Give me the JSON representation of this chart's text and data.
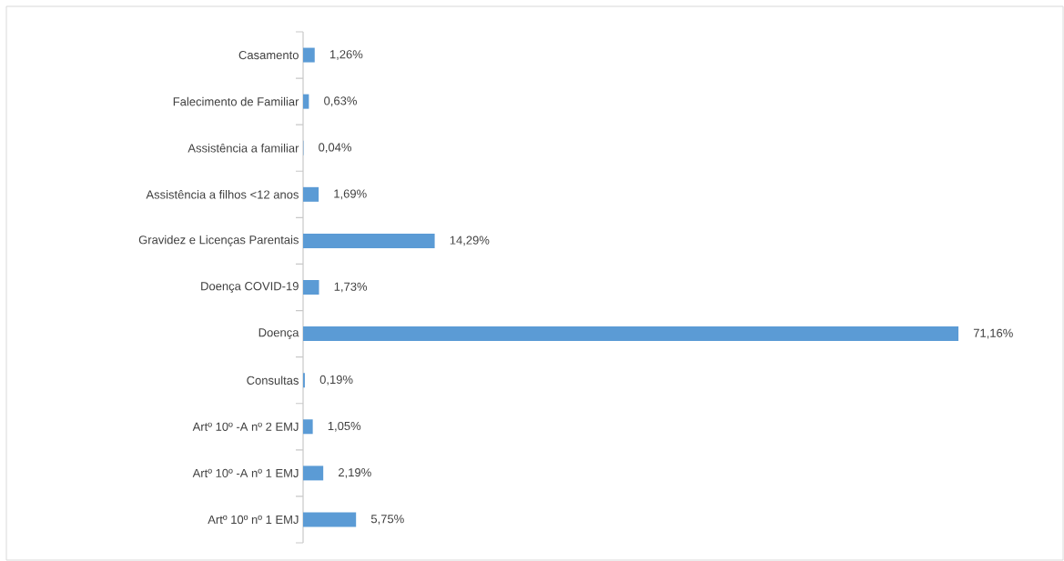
{
  "chart_data": {
    "type": "bar",
    "orientation": "horizontal",
    "categories": [
      "Casamento",
      "Falecimento de Familiar",
      "Assistência a familiar",
      "Assistência a filhos <12 anos",
      "Gravidez e Licenças Parentais",
      "Doença COVID-19",
      "Doença",
      "Consultas",
      "Artº 10º -A nº 2 EMJ",
      "Artº 10º -A nº 1 EMJ",
      "Artº 10º nº 1 EMJ"
    ],
    "values": [
      1.26,
      0.63,
      0.04,
      1.69,
      14.29,
      1.73,
      71.16,
      0.19,
      1.05,
      2.19,
      5.75
    ],
    "value_labels": [
      "1,26%",
      "0,63%",
      "0,04%",
      "1,69%",
      "14,29%",
      "1,73%",
      "71,16%",
      "0,19%",
      "1,05%",
      "2,19%",
      "5,75%"
    ],
    "color": "#5b9bd5"
  }
}
